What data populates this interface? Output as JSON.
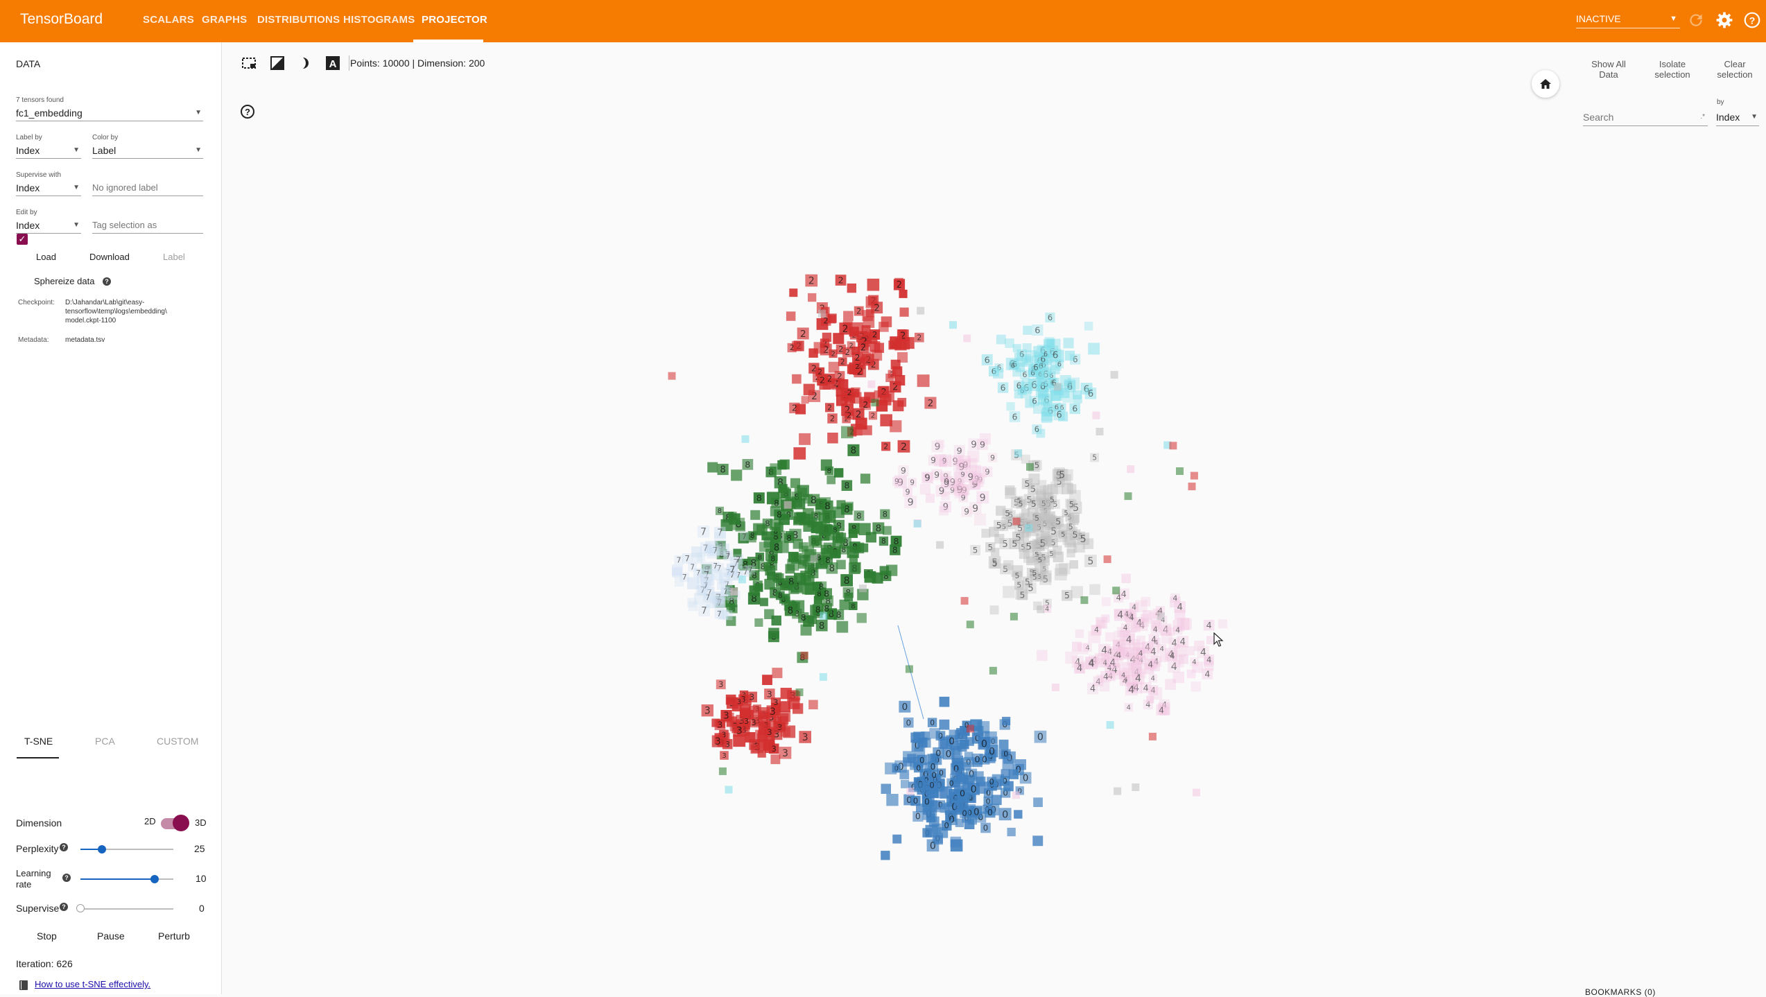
{
  "app": {
    "brand": "TensorBoard"
  },
  "nav": {
    "tabs": [
      "SCALARS",
      "GRAPHS",
      "DISTRIBUTIONS",
      "HISTOGRAMS",
      "PROJECTOR"
    ],
    "active": "PROJECTOR"
  },
  "run_select": {
    "value": "INACTIVE"
  },
  "icons": {
    "refresh": "refresh-icon",
    "settings": "gear-icon",
    "help": "help-icon"
  },
  "colors": {
    "accent": "#f57c00",
    "toggle": "#880e4f",
    "slider": "#1565c0"
  },
  "data_panel": {
    "title": "DATA",
    "tensors_found": "7 tensors found",
    "tensor": "fc1_embedding",
    "label_by_label": "Label by",
    "label_by": "Index",
    "color_by_label": "Color by",
    "color_by": "Label",
    "supervise_with_label": "Supervise with",
    "supervise_with": "Index",
    "ignored_label_placeholder": "No ignored label",
    "edit_by_label": "Edit by",
    "edit_by": "Index",
    "tag_placeholder": "Tag selection as",
    "load": "Load",
    "download": "Download",
    "label_btn": "Label",
    "sphereize": "Sphereize data",
    "checkpoint_label": "Checkpoint:",
    "checkpoint_lines": [
      "D:\\Jahandar\\Lab\\git\\easy-",
      "tensorflow\\temp\\logs\\embedding\\",
      "model.ckpt-1100"
    ],
    "metadata_label": "Metadata:",
    "metadata": "metadata.tsv"
  },
  "algorithm": {
    "tabs": [
      "T-SNE",
      "PCA",
      "CUSTOM"
    ],
    "active": "T-SNE",
    "dimension_label": "Dimension",
    "dim_2d": "2D",
    "dim_3d": "3D",
    "dimension_3d_on": true,
    "perplexity_label": "Perplexity",
    "perplexity": "25",
    "learning_label_line1": "Learning",
    "learning_label_line2": "rate",
    "learning_rate": "10",
    "supervise_label": "Supervise",
    "supervise": "0",
    "perplexity_level": 0.23,
    "learning_level": 0.8,
    "supervise_level": 0.0,
    "stop": "Stop",
    "pause": "Pause",
    "perturb": "Perturb",
    "iteration": "Iteration: 626",
    "tsne_link": "How to use t-SNE effectively."
  },
  "toolbar": {
    "points_info": "Points: 10000 | Dimension: 200",
    "icons": [
      "select-rectangle-icon",
      "night-mode-icon",
      "brightness-icon",
      "labels-icon",
      "help-icon"
    ]
  },
  "inspector": {
    "show_all": [
      "Show All",
      "Data"
    ],
    "isolate": [
      "Isolate",
      "selection"
    ],
    "clear": [
      "Clear",
      "selection"
    ],
    "search_placeholder": "Search",
    "by_label": "by",
    "by_value": "Index",
    "bookmarks": "BOOKMARKS (0)"
  },
  "clusters": [
    {
      "digit": "2",
      "color": "#d32f2f"
    },
    {
      "digit": "6",
      "color": "#80deea"
    },
    {
      "digit": "8",
      "color": "#2e7d32"
    },
    {
      "digit": "5",
      "color": "#bdbdbd"
    },
    {
      "digit": "4",
      "color": "#f3c6e2"
    },
    {
      "digit": "9",
      "color": "#f3c6e2"
    },
    {
      "digit": "3",
      "color": "#d32f2f"
    },
    {
      "digit": "0",
      "color": "#3f7fbf"
    },
    {
      "digit": "7",
      "color": "#cfe0f3"
    }
  ]
}
